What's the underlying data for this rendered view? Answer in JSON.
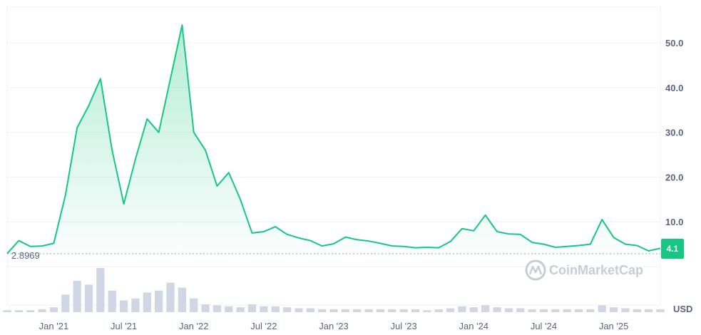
{
  "chart_data": {
    "type": "area",
    "ylabel_unit": "USD",
    "y_ticks": [
      "10.0",
      "20.0",
      "30.0",
      "40.0",
      "50.0"
    ],
    "x_ticks": [
      "Jan '21",
      "Jul '21",
      "Jan '22",
      "Jul '22",
      "Jan '23",
      "Jul '23",
      "Jan '24",
      "Jul '24",
      "Jan '25"
    ],
    "ylim": [
      0,
      58
    ],
    "baseline_value": 2.8969,
    "baseline_label": "2.8969",
    "current_label": "4.1",
    "current_value": 4.1,
    "watermark": "CoinMarketCap",
    "grid": true,
    "colors": {
      "line": "#16c784",
      "fill_top": "#16c784",
      "current_badge": "#16c784",
      "volume": "#cfd6e4",
      "grid": "#eff2f5",
      "baseline": "#9aa3b1"
    },
    "series": [
      {
        "x": [
          "2020-09",
          "2020-10",
          "2020-11",
          "2020-12",
          "2021-01",
          "2021-02",
          "2021-03",
          "2021-04",
          "2021-05",
          "2021-06",
          "2021-07",
          "2021-08",
          "2021-09",
          "2021-10",
          "2021-11",
          "2021-12",
          "2022-01",
          "2022-02",
          "2022-03",
          "2022-04",
          "2022-05",
          "2022-06",
          "2022-07",
          "2022-08",
          "2022-09",
          "2022-10",
          "2022-11",
          "2022-12",
          "2023-01",
          "2023-02",
          "2023-03",
          "2023-04",
          "2023-05",
          "2023-06",
          "2023-07",
          "2023-08",
          "2023-09",
          "2023-10",
          "2023-11",
          "2023-12",
          "2024-01",
          "2024-02",
          "2024-03",
          "2024-04",
          "2024-05",
          "2024-06",
          "2024-07",
          "2024-08",
          "2024-09",
          "2024-10",
          "2024-11",
          "2024-12",
          "2025-01",
          "2025-02",
          "2025-03",
          "2025-04",
          "2025-05"
        ],
        "y": [
          2.9,
          5.8,
          4.5,
          4.6,
          5.2,
          16,
          31,
          36,
          42,
          26,
          14,
          24,
          33,
          30,
          42,
          54,
          30,
          26,
          18,
          21,
          15,
          7.5,
          7.8,
          8.9,
          7.2,
          6.4,
          5.8,
          4.6,
          5.1,
          6.6,
          6.0,
          5.7,
          5.2,
          4.6,
          4.5,
          4.2,
          4.3,
          4.2,
          5.6,
          8.5,
          8.0,
          11.5,
          7.8,
          7.3,
          7.2,
          5.4,
          5.0,
          4.3,
          4.5,
          4.7,
          5.0,
          10.5,
          6.5,
          5.0,
          4.7,
          3.5,
          4.1
        ]
      }
    ],
    "volume": [
      2,
      2,
      2,
      3,
      5,
      18,
      32,
      28,
      45,
      22,
      12,
      14,
      20,
      22,
      30,
      25,
      14,
      8,
      7,
      6,
      5,
      8,
      6,
      6,
      5,
      4,
      4,
      3,
      3,
      3,
      3,
      3,
      3,
      3,
      3,
      3,
      2,
      3,
      4,
      6,
      5,
      7,
      5,
      4,
      4,
      3,
      3,
      3,
      3,
      3,
      3,
      7,
      5,
      4,
      3,
      3,
      3
    ]
  }
}
